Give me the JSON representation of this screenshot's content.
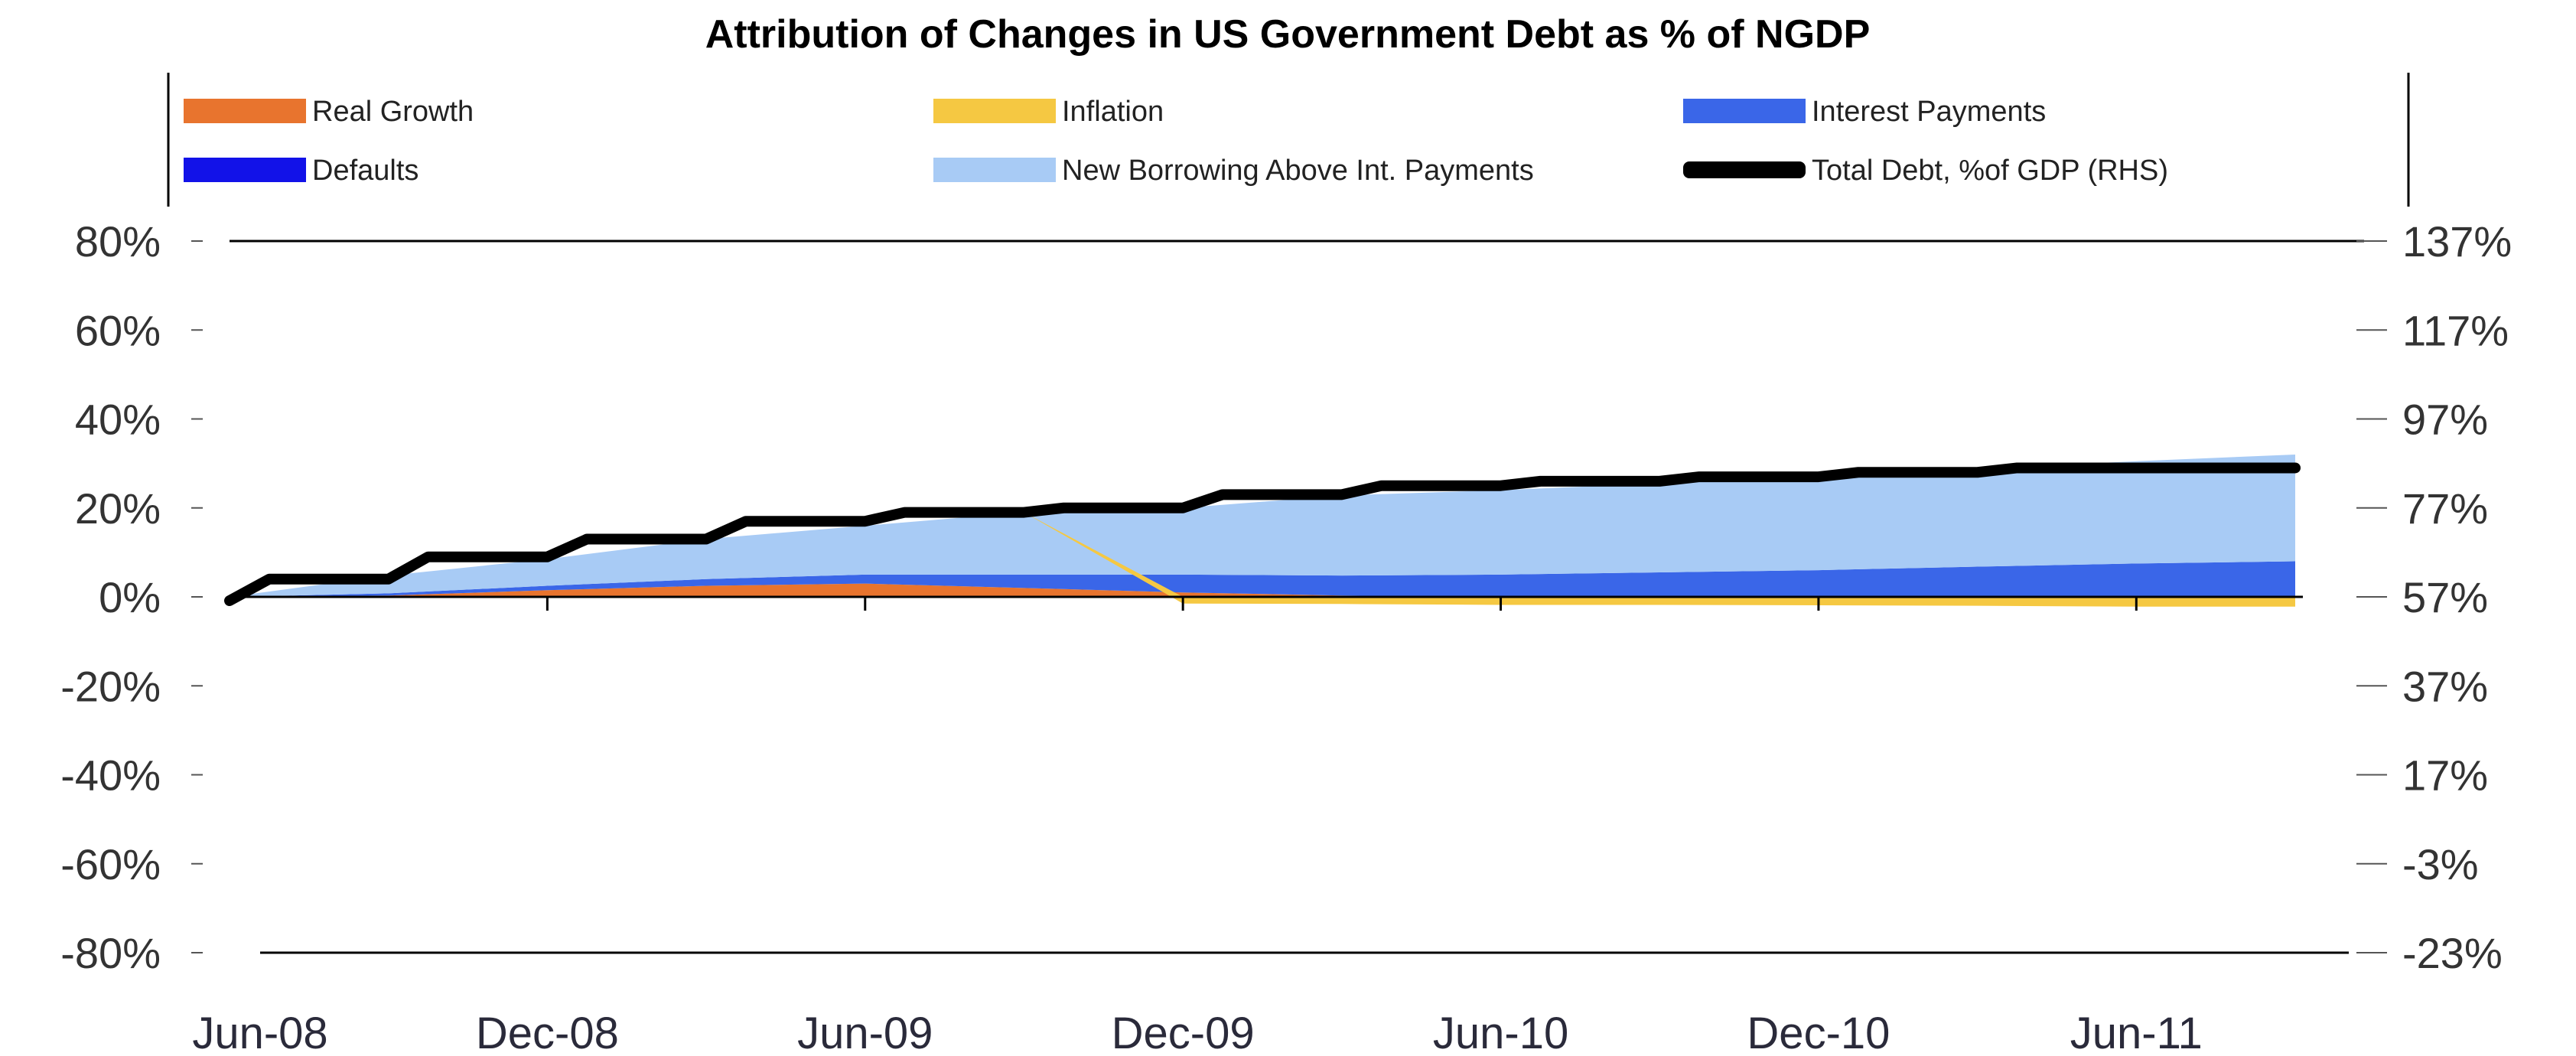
{
  "chart_data": {
    "type": "area",
    "title": "Attribution of Changes in US Government Debt as % of NGDP",
    "legend": {
      "placement": "top",
      "entries": [
        {
          "label": "Real Growth",
          "color": "#e8742e"
        },
        {
          "label": "Inflation",
          "color": "#f5c842"
        },
        {
          "label": "Interest Payments",
          "color": "#3a66e8"
        },
        {
          "label": "Defaults",
          "color": "#1212e8"
        },
        {
          "label": "New Borrowing Above Int. Payments",
          "color": "#a8cbf5"
        },
        {
          "label": "Total Debt, %of GDP (RHS)",
          "color": "#000000"
        }
      ]
    },
    "x_tick_labels": [
      "Jun-08",
      "Dec-08",
      "Jun-09",
      "Dec-09",
      "Jun-10",
      "Dec-10",
      "Jun-11"
    ],
    "x": [
      "Jun-08",
      "Sep-08",
      "Dec-08",
      "Mar-09",
      "Jun-09",
      "Sep-09",
      "Dec-09",
      "Mar-10",
      "Jun-10",
      "Sep-10",
      "Dec-10",
      "Mar-11",
      "Jun-11",
      "Sep-11"
    ],
    "y_left": {
      "range": [
        -80,
        80
      ],
      "tick_labels": [
        "80%",
        "60%",
        "40%",
        "20%",
        "0%",
        "-20%",
        "-40%",
        "-60%",
        "-80%"
      ]
    },
    "y_right": {
      "range": [
        -23,
        137
      ],
      "tick_labels": [
        "137%",
        "117%",
        "97%",
        "77%",
        "57%",
        "37%",
        "17%",
        "-3%",
        "-23%"
      ]
    },
    "series": [
      {
        "name": "Real Growth",
        "axis": "left",
        "color": "#e8742e",
        "values": [
          0,
          0.3,
          1.5,
          2.5,
          3.0,
          2.0,
          1.0,
          0.3,
          0,
          0,
          0,
          0,
          0,
          0
        ]
      },
      {
        "name": "Inflation",
        "axis": "left",
        "color": "#f5c842",
        "values": [
          0,
          0,
          0,
          0,
          0,
          0,
          -1.5,
          -1.6,
          -1.8,
          -1.8,
          -1.9,
          -2.0,
          -2.2,
          -2.2
        ]
      },
      {
        "name": "Interest Payments",
        "axis": "left",
        "color": "#3a66e8",
        "values": [
          0,
          0.5,
          1.0,
          1.5,
          2.0,
          3.0,
          4.0,
          4.5,
          5.0,
          5.5,
          6.0,
          6.8,
          7.5,
          8.0
        ]
      },
      {
        "name": "Defaults",
        "axis": "left",
        "color": "#1212e8",
        "values": [
          0,
          0,
          0,
          0,
          0,
          0,
          0,
          0,
          0,
          0,
          0,
          0,
          0,
          0
        ]
      },
      {
        "name": "New Borrowing Above Int. Payments",
        "axis": "left",
        "color": "#a8cbf5",
        "values": [
          0,
          4,
          6,
          9,
          11,
          14,
          15,
          18,
          19,
          20,
          21,
          22,
          23,
          24
        ]
      },
      {
        "name": "Total Debt, %of GDP (RHS)",
        "axis": "right",
        "color": "#000000",
        "values": [
          57,
          61,
          66,
          70,
          74,
          76,
          77,
          80,
          82,
          83,
          84,
          85,
          86,
          86
        ]
      }
    ],
    "grid": false
  }
}
